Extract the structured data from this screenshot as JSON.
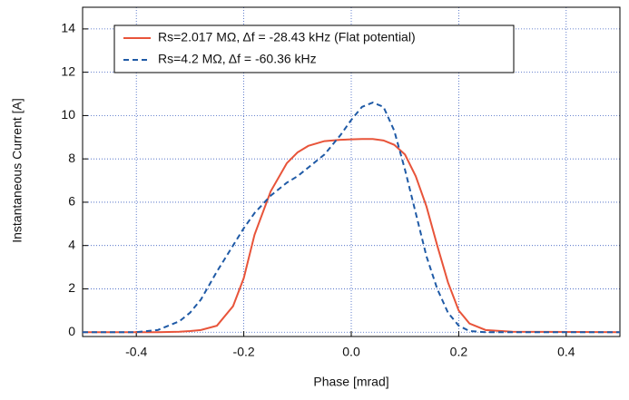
{
  "chart_data": {
    "type": "line",
    "xlabel": "Phase [mrad]",
    "ylabel": "Instantaneous Current [A]",
    "x": [
      -0.5,
      -0.4,
      -0.36,
      -0.32,
      -0.3,
      -0.28,
      -0.25,
      -0.22,
      -0.2,
      -0.18,
      -0.15,
      -0.12,
      -0.1,
      -0.08,
      -0.05,
      -0.02,
      0,
      0.02,
      0.04,
      0.06,
      0.08,
      0.1,
      0.12,
      0.14,
      0.16,
      0.18,
      0.2,
      0.22,
      0.25,
      0.3,
      0.5
    ],
    "series": [
      {
        "name": "Rs=2.017 MΩ,  Δf = -28.43 kHz (Flat potential)",
        "color": "#e8543a",
        "dash": false,
        "values": [
          0,
          0,
          0,
          0.02,
          0.05,
          0.1,
          0.3,
          1.2,
          2.5,
          4.5,
          6.5,
          7.8,
          8.3,
          8.6,
          8.82,
          8.88,
          8.9,
          8.92,
          8.92,
          8.85,
          8.65,
          8.2,
          7.2,
          5.8,
          4.0,
          2.3,
          1.0,
          0.4,
          0.1,
          0.02,
          0
        ]
      },
      {
        "name": "Rs=4.2 MΩ,  Δf = -60.36 kHz",
        "color": "#1f5aa6",
        "dash": true,
        "values": [
          0,
          0,
          0.1,
          0.5,
          0.9,
          1.5,
          2.8,
          4.0,
          4.8,
          5.5,
          6.3,
          6.9,
          7.2,
          7.6,
          8.2,
          9.1,
          9.8,
          10.4,
          10.6,
          10.4,
          9.3,
          7.5,
          5.5,
          3.5,
          2.0,
          0.9,
          0.3,
          0.05,
          0,
          0,
          0
        ]
      }
    ],
    "xlim": [
      -0.5,
      0.5
    ],
    "ylim": [
      -0.2,
      15
    ],
    "xticks": [
      -0.4,
      -0.2,
      {
        "value": 0,
        "label": "0.0"
      },
      0.2,
      0.4
    ],
    "yticks": [
      0,
      2,
      4,
      6,
      8,
      10,
      12,
      14
    ],
    "grid": true,
    "legend": "top"
  }
}
